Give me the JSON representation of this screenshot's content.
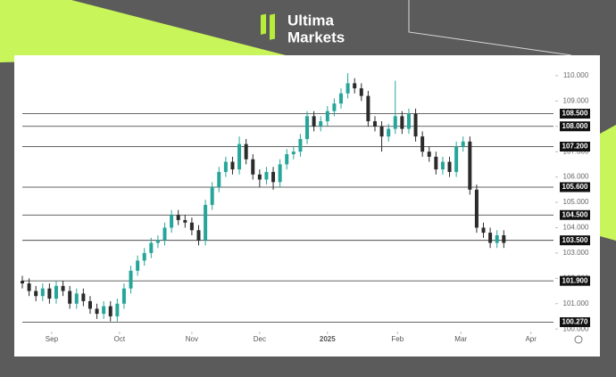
{
  "logo": {
    "line1": "Ultima",
    "line2": "Markets"
  },
  "chart_data": {
    "type": "candlestick",
    "up_color": "#26a69a",
    "down_color": "#2b2b2b",
    "xlim": [
      0,
      235
    ],
    "xticks": [
      {
        "value": 13,
        "label": "Sep"
      },
      {
        "value": 43,
        "label": "Oct"
      },
      {
        "value": 75,
        "label": "Nov"
      },
      {
        "value": 105,
        "label": "Dec"
      },
      {
        "value": 135,
        "label": "2025"
      },
      {
        "value": 166,
        "label": "Feb"
      },
      {
        "value": 194,
        "label": "Mar"
      },
      {
        "value": 225,
        "label": "Apr"
      }
    ],
    "ylim": [
      99.9,
      110.7
    ],
    "yticks": [
      {
        "value": 100,
        "label": "100.000"
      },
      {
        "value": 101,
        "label": "101.000"
      },
      {
        "value": 102,
        "label": "102.000"
      },
      {
        "value": 103,
        "label": "103.000"
      },
      {
        "value": 104,
        "label": "104.000"
      },
      {
        "value": 105,
        "label": "105.000"
      },
      {
        "value": 106,
        "label": "106.000"
      },
      {
        "value": 107,
        "label": "107.000"
      },
      {
        "value": 108,
        "label": "108.000"
      },
      {
        "value": 109,
        "label": "109.000"
      },
      {
        "value": 110,
        "label": "110.000"
      }
    ],
    "levels": [
      {
        "value": 108.5,
        "label": "108.500"
      },
      {
        "value": 108,
        "label": "108.000"
      },
      {
        "value": 107.2,
        "label": "107.200"
      },
      {
        "value": 105.6,
        "label": "105.600"
      },
      {
        "value": 104.5,
        "label": "104.500"
      },
      {
        "value": 103.5,
        "label": "103.500"
      },
      {
        "value": 101.9,
        "label": "101.900"
      },
      {
        "value": 100.27,
        "label": "100.270"
      }
    ],
    "x": [
      0,
      3,
      6,
      9,
      12,
      15,
      18,
      21,
      24,
      27,
      30,
      33,
      36,
      39,
      42,
      45,
      48,
      51,
      54,
      57,
      60,
      63,
      66,
      69,
      72,
      75,
      78,
      81,
      84,
      87,
      90,
      93,
      96,
      99,
      102,
      105,
      108,
      111,
      114,
      117,
      120,
      123,
      126,
      129,
      132,
      135,
      138,
      141,
      144,
      147,
      150,
      153,
      156,
      159,
      162,
      165,
      168,
      171,
      174,
      177,
      180,
      183,
      186,
      189,
      192,
      195,
      198,
      201,
      204,
      207,
      210,
      213
    ],
    "open": [
      101.9,
      101.8,
      101.5,
      101.3,
      101.6,
      101.2,
      101.7,
      101.5,
      101.0,
      101.4,
      101.1,
      100.8,
      100.6,
      100.9,
      100.5,
      101.0,
      101.6,
      102.3,
      102.7,
      103.0,
      103.4,
      103.5,
      104.0,
      104.5,
      104.3,
      104.2,
      103.9,
      103.5,
      104.9,
      105.6,
      106.2,
      106.6,
      106.3,
      107.3,
      106.7,
      106.1,
      105.9,
      106.2,
      105.8,
      106.5,
      106.9,
      107.0,
      107.5,
      108.4,
      108.0,
      108.2,
      108.6,
      108.9,
      109.3,
      109.7,
      109.5,
      109.2,
      108.2,
      108.0,
      107.6,
      107.9,
      108.4,
      107.9,
      108.5,
      107.6,
      107.0,
      106.8,
      106.3,
      106.6,
      106.2,
      107.2,
      107.4,
      105.5,
      104.0,
      103.8,
      103.4,
      103.7
    ],
    "high": [
      102.1,
      102.0,
      101.7,
      101.8,
      101.8,
      101.9,
      101.9,
      101.7,
      101.6,
      101.6,
      101.3,
      101.0,
      101.1,
      101.1,
      101.2,
      101.8,
      102.5,
      102.9,
      103.2,
      103.6,
      103.7,
      104.2,
      104.7,
      104.7,
      104.5,
      104.4,
      104.1,
      105.1,
      105.8,
      106.4,
      106.8,
      106.8,
      107.6,
      107.5,
      106.9,
      106.3,
      106.4,
      106.4,
      106.7,
      107.1,
      107.2,
      107.7,
      108.6,
      108.6,
      108.4,
      108.8,
      109.1,
      109.5,
      110.1,
      109.9,
      109.7,
      109.4,
      108.4,
      108.2,
      108.1,
      109.8,
      108.6,
      108.7,
      108.7,
      107.8,
      107.2,
      107.0,
      106.8,
      106.8,
      107.4,
      107.6,
      107.6,
      105.7,
      104.2,
      104.0,
      103.9,
      103.9
    ],
    "low": [
      101.6,
      101.3,
      101.1,
      101.1,
      101.0,
      101.0,
      101.3,
      100.8,
      100.8,
      100.9,
      100.6,
      100.4,
      100.4,
      100.3,
      100.3,
      100.8,
      101.4,
      102.1,
      102.5,
      102.8,
      103.2,
      103.3,
      103.8,
      104.1,
      104.0,
      103.7,
      103.3,
      103.3,
      104.7,
      105.4,
      106.0,
      106.1,
      106.1,
      106.5,
      105.9,
      105.6,
      105.7,
      105.5,
      105.6,
      106.3,
      106.7,
      106.8,
      107.3,
      107.8,
      107.8,
      108.0,
      108.4,
      108.7,
      109.1,
      109.3,
      109.0,
      108.0,
      107.8,
      107.0,
      107.4,
      107.7,
      107.7,
      107.7,
      107.4,
      106.8,
      106.6,
      106.1,
      106.1,
      106.0,
      106.0,
      107.0,
      105.3,
      103.8,
      103.6,
      103.2,
      103.2,
      103.2
    ],
    "close": [
      101.8,
      101.5,
      101.3,
      101.6,
      101.2,
      101.7,
      101.5,
      101.0,
      101.4,
      101.1,
      100.8,
      100.6,
      100.9,
      100.5,
      101.0,
      101.6,
      102.3,
      102.7,
      103.0,
      103.4,
      103.5,
      104.0,
      104.5,
      104.3,
      104.2,
      103.9,
      103.5,
      104.9,
      105.6,
      106.2,
      106.6,
      106.3,
      107.3,
      106.7,
      106.1,
      105.9,
      106.2,
      105.8,
      106.5,
      106.9,
      107.0,
      107.5,
      108.4,
      108.0,
      108.2,
      108.6,
      108.9,
      109.3,
      109.7,
      109.5,
      109.2,
      108.2,
      108.0,
      107.6,
      107.9,
      108.4,
      107.9,
      108.5,
      107.6,
      107.0,
      106.8,
      106.3,
      106.6,
      106.2,
      107.2,
      107.4,
      105.5,
      104.0,
      103.8,
      103.4,
      103.7,
      103.4
    ]
  }
}
